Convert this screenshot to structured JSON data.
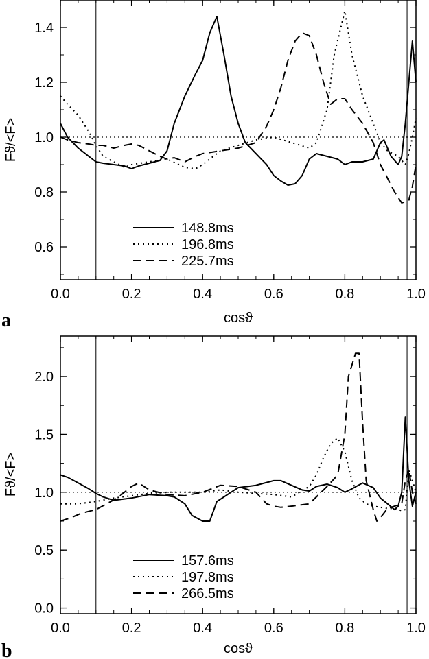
{
  "chart_data": [
    {
      "type": "line",
      "panel_label": "a",
      "xlabel": "cosϑ",
      "ylabel": "Fϑ/<F>",
      "xlim": [
        0.0,
        1.0
      ],
      "ylim": [
        0.48,
        1.5
      ],
      "x_ticks": [
        "0.0",
        "0.2",
        "0.4",
        "0.6",
        "0.8",
        "1.0"
      ],
      "y_ticks": [
        "0.6",
        "0.8",
        "1.0",
        "1.2",
        "1.4"
      ],
      "reference_line_y": 1.0,
      "vertical_lines_x": [
        0.1,
        0.975
      ],
      "legend_position": "bottom-left",
      "series": [
        {
          "name": "148.8ms",
          "style": "solid",
          "x": [
            0.0,
            0.02,
            0.05,
            0.08,
            0.1,
            0.12,
            0.15,
            0.18,
            0.2,
            0.22,
            0.25,
            0.28,
            0.3,
            0.32,
            0.35,
            0.38,
            0.4,
            0.42,
            0.44,
            0.46,
            0.48,
            0.5,
            0.52,
            0.55,
            0.58,
            0.6,
            0.62,
            0.64,
            0.66,
            0.68,
            0.7,
            0.72,
            0.75,
            0.78,
            0.8,
            0.82,
            0.85,
            0.88,
            0.9,
            0.91,
            0.93,
            0.95,
            0.96,
            0.97,
            0.98,
            0.99,
            1.0
          ],
          "y": [
            1.05,
            1.0,
            0.96,
            0.93,
            0.91,
            0.905,
            0.9,
            0.895,
            0.885,
            0.895,
            0.905,
            0.915,
            0.95,
            1.05,
            1.15,
            1.23,
            1.28,
            1.38,
            1.44,
            1.3,
            1.15,
            1.05,
            0.98,
            0.94,
            0.9,
            0.86,
            0.84,
            0.825,
            0.83,
            0.86,
            0.92,
            0.94,
            0.93,
            0.92,
            0.9,
            0.91,
            0.91,
            0.92,
            0.98,
            0.99,
            0.93,
            0.9,
            0.93,
            1.05,
            1.2,
            1.35,
            1.2
          ]
        },
        {
          "name": "196.8ms",
          "style": "dotted",
          "x": [
            0.0,
            0.02,
            0.05,
            0.08,
            0.1,
            0.12,
            0.15,
            0.18,
            0.2,
            0.25,
            0.3,
            0.35,
            0.38,
            0.4,
            0.45,
            0.5,
            0.55,
            0.6,
            0.65,
            0.7,
            0.72,
            0.75,
            0.77,
            0.8,
            0.82,
            0.85,
            0.88,
            0.9,
            0.92,
            0.95,
            0.97,
            0.98,
            0.99,
            1.0
          ],
          "y": [
            1.15,
            1.12,
            1.08,
            1.02,
            0.97,
            0.93,
            0.91,
            0.89,
            0.9,
            0.91,
            0.92,
            0.89,
            0.885,
            0.9,
            0.95,
            0.97,
            0.99,
            1.0,
            0.98,
            0.96,
            0.98,
            1.1,
            1.3,
            1.46,
            1.3,
            1.15,
            1.05,
            0.98,
            0.95,
            0.93,
            0.9,
            0.94,
            1.0,
            1.07
          ]
        },
        {
          "name": "225.7ms",
          "style": "dashed",
          "x": [
            0.0,
            0.02,
            0.05,
            0.08,
            0.1,
            0.12,
            0.15,
            0.18,
            0.2,
            0.22,
            0.25,
            0.28,
            0.3,
            0.32,
            0.35,
            0.38,
            0.4,
            0.45,
            0.5,
            0.55,
            0.58,
            0.6,
            0.62,
            0.64,
            0.66,
            0.68,
            0.7,
            0.72,
            0.74,
            0.76,
            0.78,
            0.8,
            0.82,
            0.85,
            0.88,
            0.9,
            0.92,
            0.94,
            0.95,
            0.96,
            0.98,
            0.99,
            1.0
          ],
          "y": [
            1.0,
            0.99,
            0.98,
            0.975,
            0.97,
            0.97,
            0.96,
            0.97,
            0.975,
            0.97,
            0.95,
            0.93,
            0.92,
            0.925,
            0.91,
            0.93,
            0.94,
            0.95,
            0.96,
            0.98,
            1.04,
            1.1,
            1.18,
            1.28,
            1.35,
            1.38,
            1.37,
            1.3,
            1.2,
            1.12,
            1.14,
            1.14,
            1.1,
            1.05,
            0.98,
            0.9,
            0.85,
            0.8,
            0.78,
            0.76,
            0.77,
            0.82,
            0.9
          ]
        }
      ]
    },
    {
      "type": "line",
      "panel_label": "b",
      "xlabel": "cosϑ",
      "ylabel": "Fϑ/<F>",
      "xlim": [
        0.0,
        1.0
      ],
      "ylim": [
        -0.05,
        2.35
      ],
      "x_ticks": [
        "0.0",
        "0.2",
        "0.4",
        "0.6",
        "0.8",
        "1.0"
      ],
      "y_ticks": [
        "0.0",
        "0.5",
        "1.0",
        "1.5",
        "2.0"
      ],
      "reference_line_y": 1.0,
      "vertical_lines_x": [
        0.1,
        0.975
      ],
      "legend_position": "bottom-left",
      "series": [
        {
          "name": "157.6ms",
          "style": "solid",
          "x": [
            0.0,
            0.02,
            0.05,
            0.08,
            0.1,
            0.12,
            0.15,
            0.2,
            0.25,
            0.3,
            0.32,
            0.35,
            0.37,
            0.4,
            0.42,
            0.44,
            0.46,
            0.48,
            0.5,
            0.55,
            0.6,
            0.62,
            0.65,
            0.68,
            0.7,
            0.72,
            0.75,
            0.78,
            0.8,
            0.82,
            0.85,
            0.88,
            0.9,
            0.92,
            0.94,
            0.95,
            0.96,
            0.97,
            0.98,
            0.99,
            1.0
          ],
          "y": [
            1.15,
            1.13,
            1.08,
            1.03,
            0.99,
            0.96,
            0.93,
            0.95,
            0.98,
            0.97,
            0.96,
            0.9,
            0.8,
            0.75,
            0.75,
            0.92,
            0.96,
            1.0,
            1.04,
            1.06,
            1.1,
            1.1,
            1.06,
            1.02,
            1.01,
            1.05,
            1.07,
            1.04,
            1.0,
            1.03,
            1.08,
            1.04,
            0.95,
            0.9,
            0.85,
            0.88,
            1.0,
            1.65,
            1.1,
            0.88,
            1.0
          ]
        },
        {
          "name": "197.8ms",
          "style": "dotted",
          "x": [
            0.0,
            0.05,
            0.1,
            0.15,
            0.2,
            0.25,
            0.3,
            0.35,
            0.4,
            0.45,
            0.5,
            0.55,
            0.6,
            0.65,
            0.7,
            0.72,
            0.74,
            0.76,
            0.78,
            0.8,
            0.82,
            0.84,
            0.86,
            0.88,
            0.9,
            0.92,
            0.94,
            0.96,
            0.97,
            0.98,
            0.99,
            1.0
          ],
          "y": [
            0.9,
            0.9,
            0.92,
            0.95,
            0.97,
            0.99,
            1.0,
            1.0,
            1.0,
            1.02,
            1.0,
            0.99,
            0.98,
            0.96,
            1.05,
            1.15,
            1.3,
            1.42,
            1.47,
            1.35,
            1.1,
            0.95,
            0.9,
            0.88,
            0.87,
            0.86,
            0.86,
            0.84,
            0.85,
            1.2,
            1.1,
            1.0
          ]
        },
        {
          "name": "266.5ms",
          "style": "dashed",
          "x": [
            0.0,
            0.03,
            0.06,
            0.1,
            0.13,
            0.16,
            0.2,
            0.22,
            0.25,
            0.3,
            0.35,
            0.4,
            0.45,
            0.5,
            0.55,
            0.58,
            0.6,
            0.62,
            0.65,
            0.7,
            0.75,
            0.78,
            0.8,
            0.81,
            0.82,
            0.83,
            0.84,
            0.85,
            0.86,
            0.88,
            0.89,
            0.9,
            0.92,
            0.94,
            0.96,
            0.97,
            0.98,
            0.99,
            1.0
          ],
          "y": [
            0.75,
            0.78,
            0.82,
            0.85,
            0.9,
            0.95,
            1.05,
            1.08,
            1.02,
            0.98,
            0.97,
            1.0,
            1.06,
            1.05,
            1.0,
            0.9,
            0.88,
            0.87,
            0.88,
            0.9,
            1.05,
            1.15,
            1.5,
            2.0,
            2.1,
            2.2,
            2.2,
            1.6,
            1.1,
            0.85,
            0.75,
            0.78,
            0.86,
            0.88,
            0.9,
            1.1,
            1.2,
            1.0,
            0.9
          ]
        }
      ]
    }
  ]
}
